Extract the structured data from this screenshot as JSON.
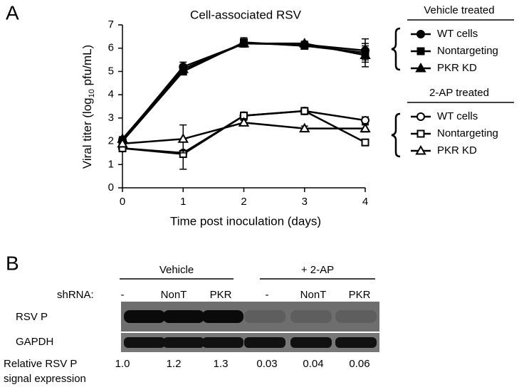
{
  "panel_labels": [
    "A",
    "B"
  ],
  "chart_data": {
    "type": "line",
    "title": "Cell-associated RSV",
    "x_label": "Time post inoculation (days)",
    "y_label_parts": [
      "Viral titer (log",
      "10",
      " pfu/mL)"
    ],
    "x": [
      0,
      1,
      2,
      3,
      4
    ],
    "xlim": [
      0,
      4
    ],
    "xticks": [
      0,
      1,
      2,
      3,
      4
    ],
    "ylim": [
      0,
      7
    ],
    "yticks": [
      0,
      1,
      2,
      3,
      4,
      5,
      6,
      7
    ],
    "legend_groups": [
      {
        "title": "Vehicle treated"
      },
      {
        "title": "2-AP treated"
      }
    ],
    "series": [
      {
        "name": "WT cells",
        "group": 0,
        "marker": "circle",
        "filled": true,
        "color": "#000000",
        "values": [
          2.05,
          5.2,
          6.2,
          6.15,
          5.9
        ],
        "errors": [
          0.1,
          0.2,
          0.15,
          0.1,
          0.5
        ]
      },
      {
        "name": "Nontargeting",
        "group": 0,
        "marker": "square",
        "filled": true,
        "color": "#000000",
        "values": [
          2.0,
          5.0,
          6.25,
          6.1,
          5.8
        ],
        "errors": [
          0.1,
          0.15,
          0.2,
          0.1,
          0.3
        ]
      },
      {
        "name": "PKR KD",
        "group": 0,
        "marker": "triangle",
        "filled": true,
        "color": "#000000",
        "values": [
          2.1,
          5.1,
          6.2,
          6.2,
          5.7
        ],
        "errors": [
          0.1,
          0.15,
          0.15,
          0.1,
          0.5
        ]
      },
      {
        "name": "WT cells",
        "group": 1,
        "marker": "circle",
        "filled": false,
        "color": "#000000",
        "values": [
          1.7,
          1.5,
          3.1,
          3.3,
          2.9
        ],
        "errors": [
          0.1,
          0.1,
          0.15,
          0.1,
          0.15
        ]
      },
      {
        "name": "Nontargeting",
        "group": 1,
        "marker": "square",
        "filled": false,
        "color": "#000000",
        "values": [
          1.7,
          1.45,
          3.1,
          3.3,
          1.95
        ],
        "errors": [
          0.15,
          0.65,
          0.15,
          0.15,
          0.1
        ]
      },
      {
        "name": "PKR KD",
        "group": 1,
        "marker": "triangle",
        "filled": false,
        "color": "#000000",
        "values": [
          1.9,
          2.1,
          2.8,
          2.55,
          2.55
        ],
        "errors": [
          0.15,
          0.6,
          0.1,
          0.1,
          0.15
        ]
      }
    ]
  },
  "blot": {
    "group_labels": [
      "Vehicle",
      "+ 2-AP"
    ],
    "shrna_label": "shRNA:",
    "lanes": [
      "-",
      "NonT",
      "PKR",
      "-",
      "NonT",
      "PKR"
    ],
    "rows": [
      "RSV P",
      "GAPDH"
    ],
    "relative_label": [
      "Relative RSV P",
      "signal expression"
    ],
    "relative_values": [
      "1.0",
      "1.2",
      "1.3",
      "0.03",
      "0.04",
      "0.06"
    ]
  }
}
